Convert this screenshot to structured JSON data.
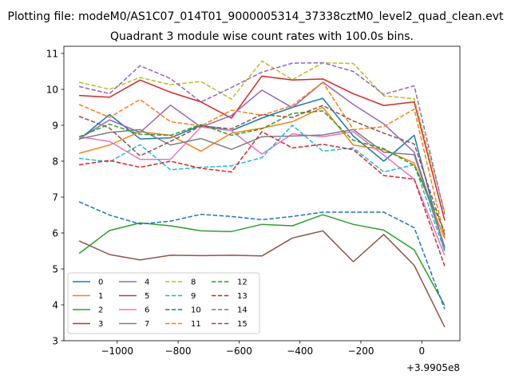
{
  "chart_data": {
    "type": "line",
    "suptitle": "Plotting file: modeM0/AS1C07_014T01_9000005314_37338cztM0_level2_quad_clean.evt",
    "title": "Quadrant 3 module wise count rates with 100.0s bins.",
    "xlabel": "",
    "ylabel": "",
    "x_offset_label": "+3.9905e8",
    "xlim": [
      -1175,
      125
    ],
    "ylim": [
      3,
      11.2
    ],
    "xticks": [
      -1000,
      -800,
      -600,
      -400,
      -200,
      0
    ],
    "xtick_labels": [
      "−1000",
      "−800",
      "−600",
      "−400",
      "−200",
      "0"
    ],
    "yticks": [
      3,
      4,
      5,
      6,
      7,
      8,
      9,
      10,
      11
    ],
    "ytick_labels": [
      "3",
      "4",
      "5",
      "6",
      "7",
      "8",
      "9",
      "10",
      "11"
    ],
    "x": [
      -1125,
      -1025,
      -925,
      -825,
      -725,
      -625,
      -525,
      -425,
      -325,
      -225,
      -125,
      -25,
      75
    ],
    "legend": {
      "position": "lower-left",
      "columns": 4
    },
    "series": [
      {
        "name": "0",
        "color": "#1f77b4",
        "dash": "solid",
        "values": [
          8.6,
          9.3,
          8.62,
          8.65,
          9.0,
          8.85,
          9.2,
          9.5,
          9.75,
          8.7,
          8.0,
          8.72,
          5.5
        ]
      },
      {
        "name": "1",
        "color": "#ff7f0e",
        "dash": "solid",
        "values": [
          8.22,
          8.45,
          8.82,
          8.72,
          8.28,
          8.78,
          8.92,
          9.1,
          9.5,
          8.45,
          8.32,
          7.95,
          5.85
        ]
      },
      {
        "name": "2",
        "color": "#2ca02c",
        "dash": "solid",
        "values": [
          5.43,
          6.07,
          6.28,
          6.2,
          6.06,
          6.04,
          6.24,
          6.2,
          6.51,
          6.24,
          6.08,
          5.53,
          3.98
        ]
      },
      {
        "name": "3",
        "color": "#d62728",
        "dash": "solid",
        "values": [
          9.83,
          9.78,
          10.26,
          9.92,
          9.65,
          9.2,
          10.37,
          10.26,
          10.29,
          9.88,
          9.55,
          9.65,
          6.35
        ]
      },
      {
        "name": "4",
        "color": "#9467bd",
        "dash": "solid",
        "values": [
          8.62,
          9.15,
          8.8,
          9.56,
          8.95,
          9.27,
          9.98,
          9.49,
          10.2,
          9.58,
          9.04,
          8.25,
          5.62
        ]
      },
      {
        "name": "5",
        "color": "#8c564b",
        "dash": "solid",
        "values": [
          5.78,
          5.4,
          5.25,
          5.38,
          5.37,
          5.38,
          5.36,
          5.86,
          6.06,
          5.2,
          5.96,
          5.1,
          3.38
        ]
      },
      {
        "name": "6",
        "color": "#e377c2",
        "dash": "solid",
        "values": [
          8.68,
          8.55,
          8.05,
          8.05,
          8.95,
          8.85,
          8.2,
          8.76,
          8.68,
          8.82,
          8.17,
          7.5,
          5.38
        ]
      },
      {
        "name": "7",
        "color": "#7f7f7f",
        "dash": "solid",
        "values": [
          8.62,
          8.8,
          8.88,
          8.45,
          8.63,
          8.33,
          8.68,
          8.7,
          8.73,
          8.88,
          8.25,
          8.18,
          5.58
        ]
      },
      {
        "name": "8",
        "color": "#bcbd22",
        "dash": "dashed",
        "values": [
          10.2,
          10.0,
          10.33,
          10.13,
          10.22,
          9.73,
          10.79,
          10.27,
          10.74,
          10.72,
          9.82,
          9.74,
          6.58
        ]
      },
      {
        "name": "9",
        "color": "#17becf",
        "dash": "dashed",
        "values": [
          8.08,
          7.98,
          8.46,
          7.76,
          7.83,
          7.87,
          8.1,
          9.0,
          8.28,
          8.37,
          7.7,
          7.9,
          5.5
        ]
      },
      {
        "name": "10",
        "color": "#1f77b4",
        "dash": "dashed",
        "values": [
          6.87,
          6.5,
          6.25,
          6.33,
          6.52,
          6.46,
          6.37,
          6.46,
          6.58,
          6.58,
          6.58,
          6.15,
          3.88
        ]
      },
      {
        "name": "11",
        "color": "#ff7f0e",
        "dash": "dashed",
        "values": [
          9.58,
          9.22,
          9.72,
          9.1,
          8.98,
          9.42,
          9.28,
          9.55,
          10.2,
          8.88,
          8.96,
          9.45,
          5.88
        ]
      },
      {
        "name": "12",
        "color": "#2ca02c",
        "dash": "dashed",
        "values": [
          8.68,
          9.03,
          8.75,
          8.72,
          9.02,
          8.72,
          8.9,
          9.33,
          9.4,
          8.58,
          8.35,
          7.88,
          6.05
        ]
      },
      {
        "name": "13",
        "color": "#d62728",
        "dash": "dashed",
        "values": [
          7.9,
          8.02,
          7.83,
          8.0,
          7.8,
          7.7,
          8.82,
          8.37,
          8.47,
          8.32,
          7.6,
          7.5,
          5.08
        ]
      },
      {
        "name": "14",
        "color": "#9467bd",
        "dash": "dashed",
        "values": [
          10.08,
          9.88,
          10.66,
          10.3,
          9.65,
          10.05,
          10.48,
          10.73,
          10.74,
          10.5,
          9.86,
          10.1,
          6.52
        ]
      },
      {
        "name": "15",
        "color": "#8c564b",
        "dash": "dashed",
        "values": [
          9.25,
          8.92,
          8.15,
          8.55,
          8.98,
          8.9,
          9.3,
          9.22,
          9.55,
          9.12,
          8.78,
          8.48,
          5.95
        ]
      }
    ]
  }
}
